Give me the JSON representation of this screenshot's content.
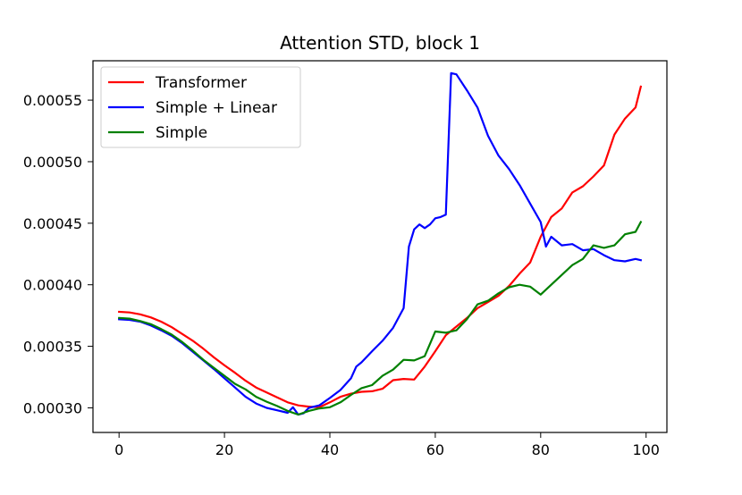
{
  "chart_data": {
    "type": "line",
    "title": "Attention STD, block 1",
    "xlabel": "",
    "ylabel": "",
    "xlim": [
      -4.95,
      103.95
    ],
    "ylim": [
      0.00028,
      0.000582
    ],
    "xticks": [
      0,
      20,
      40,
      60,
      80,
      100
    ],
    "xtick_labels": [
      "0",
      "20",
      "40",
      "60",
      "80",
      "100"
    ],
    "yticks": [
      0.0003,
      0.00035,
      0.0004,
      0.00045,
      0.0005,
      0.00055
    ],
    "ytick_labels": [
      "0.00030",
      "0.00035",
      "0.00040",
      "0.00045",
      "0.00050",
      "0.00055"
    ],
    "grid": false,
    "legend": "top-left",
    "series": [
      {
        "name": "Transformer",
        "color": "#ff0000",
        "x": [
          0,
          2,
          4,
          6,
          8,
          10,
          12,
          14,
          16,
          18,
          20,
          22,
          24,
          26,
          28,
          30,
          32,
          34,
          36,
          38,
          40,
          42,
          44,
          46,
          48,
          50,
          52,
          54,
          56,
          58,
          60,
          62,
          64,
          66,
          68,
          70,
          72,
          74,
          76,
          78,
          80,
          82,
          84,
          86,
          88,
          90,
          92,
          94,
          96,
          98,
          99
        ],
        "values": [
          0.000378,
          0.0003775,
          0.000376,
          0.0003735,
          0.00037,
          0.0003655,
          0.00036,
          0.0003545,
          0.000348,
          0.000341,
          0.0003345,
          0.0003285,
          0.000322,
          0.0003165,
          0.0003125,
          0.0003085,
          0.0003045,
          0.000302,
          0.000301,
          0.0003005,
          0.0003045,
          0.000309,
          0.0003115,
          0.000313,
          0.0003135,
          0.0003155,
          0.0003225,
          0.0003235,
          0.000323,
          0.0003335,
          0.000346,
          0.000359,
          0.000366,
          0.000373,
          0.000381,
          0.000386,
          0.000391,
          0.000399,
          0.000409,
          0.000418,
          0.000439,
          0.000455,
          0.000462,
          0.000475,
          0.00048,
          0.000488,
          0.000497,
          0.000522,
          0.000535,
          0.000544,
          0.000561
        ]
      },
      {
        "name": "Simple + Linear",
        "color": "#0000ff",
        "x": [
          0,
          2,
          4,
          6,
          8,
          10,
          12,
          14,
          16,
          18,
          20,
          22,
          24,
          26,
          28,
          30,
          32,
          33,
          34,
          35,
          36,
          38,
          40,
          42,
          44,
          45,
          46,
          48,
          50,
          52,
          54,
          55,
          56,
          57,
          58,
          59,
          60,
          61,
          62,
          63,
          64,
          66,
          68,
          70,
          72,
          74,
          76,
          78,
          80,
          81,
          82,
          84,
          86,
          88,
          90,
          92,
          94,
          96,
          98,
          99
        ],
        "values": [
          0.000372,
          0.0003715,
          0.00037,
          0.000367,
          0.000363,
          0.0003585,
          0.0003525,
          0.0003455,
          0.0003385,
          0.0003315,
          0.000324,
          0.0003165,
          0.000309,
          0.0003035,
          0.0003,
          0.000298,
          0.000296,
          0.0003005,
          0.0002945,
          0.0002955,
          0.0003,
          0.000302,
          0.000308,
          0.0003145,
          0.000324,
          0.0003335,
          0.000337,
          0.000346,
          0.0003545,
          0.000365,
          0.000381,
          0.000431,
          0.000445,
          0.000449,
          0.000446,
          0.000449,
          0.000454,
          0.000455,
          0.000457,
          0.000572,
          0.000571,
          0.000558,
          0.000544,
          0.000521,
          0.000505,
          0.000494,
          0.000481,
          0.000466,
          0.000451,
          0.000431,
          0.000439,
          0.000432,
          0.000433,
          0.000428,
          0.000429,
          0.000424,
          0.00042,
          0.000419,
          0.000421,
          0.00042
        ]
      },
      {
        "name": "Simple",
        "color": "#008000",
        "x": [
          0,
          2,
          4,
          6,
          8,
          10,
          12,
          14,
          16,
          18,
          20,
          22,
          24,
          26,
          28,
          30,
          32,
          34,
          36,
          38,
          40,
          42,
          44,
          46,
          48,
          50,
          52,
          54,
          56,
          58,
          60,
          62,
          64,
          66,
          68,
          70,
          72,
          74,
          76,
          78,
          80,
          82,
          84,
          86,
          88,
          90,
          92,
          94,
          96,
          98,
          99
        ],
        "values": [
          0.000373,
          0.0003725,
          0.0003705,
          0.000368,
          0.000364,
          0.0003595,
          0.0003535,
          0.0003465,
          0.000339,
          0.0003325,
          0.000326,
          0.0003195,
          0.000315,
          0.000309,
          0.000305,
          0.0003015,
          0.0002975,
          0.0002945,
          0.0002975,
          0.0002995,
          0.0003005,
          0.0003045,
          0.0003105,
          0.000316,
          0.0003185,
          0.000326,
          0.000331,
          0.000339,
          0.0003385,
          0.000342,
          0.000362,
          0.000361,
          0.000363,
          0.000372,
          0.000384,
          0.000387,
          0.000393,
          0.000398,
          0.0004,
          0.0003985,
          0.000392,
          0.0004,
          0.000408,
          0.000416,
          0.000421,
          0.000432,
          0.00043,
          0.000432,
          0.000441,
          0.000443,
          0.000451
        ]
      }
    ]
  }
}
